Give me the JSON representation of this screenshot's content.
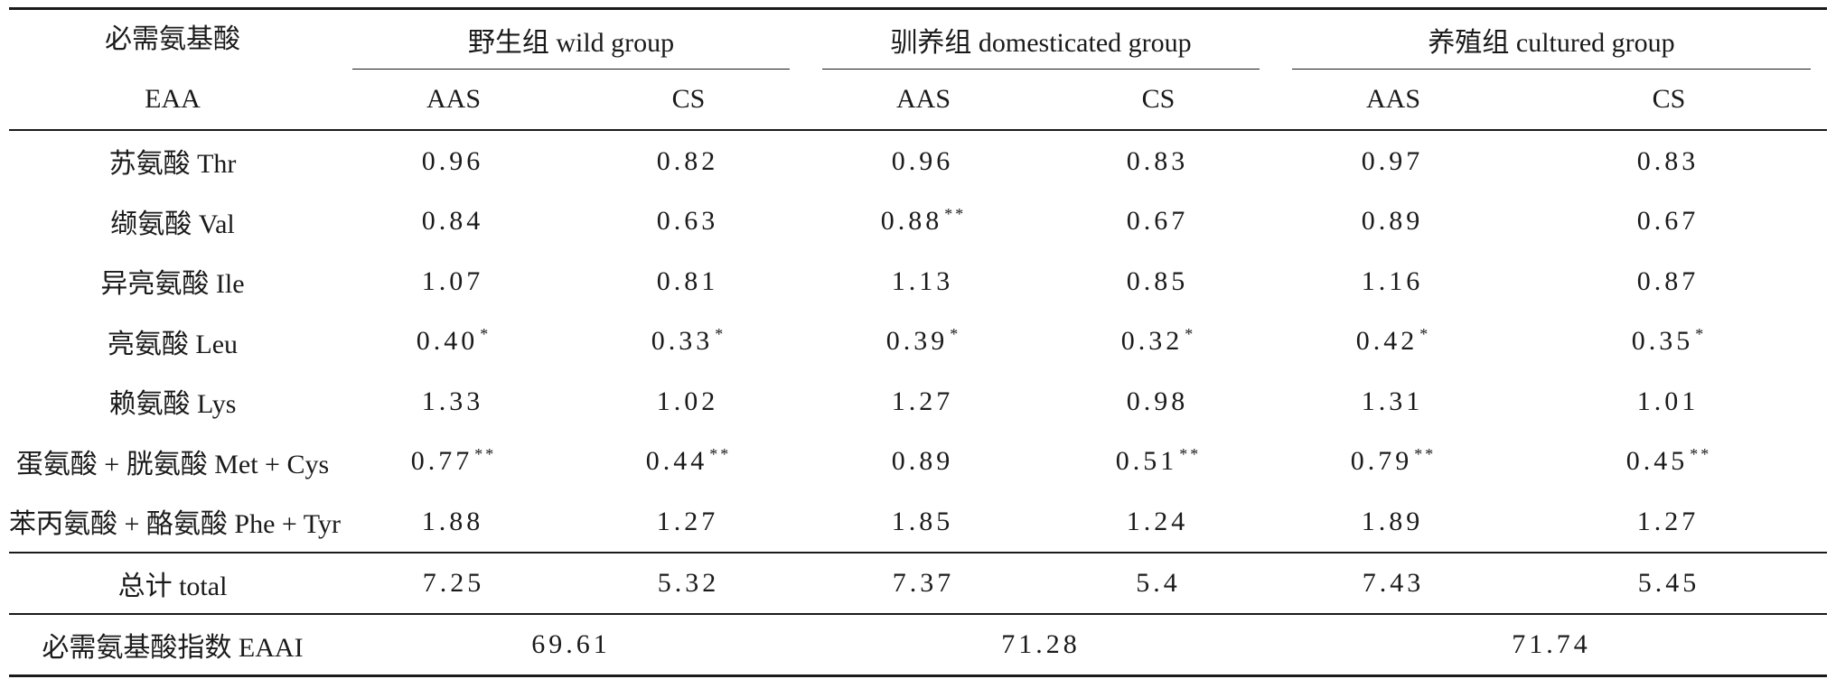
{
  "header": {
    "eaa_cn": "必需氨基酸",
    "eaa_en": "EAA",
    "groups": [
      {
        "label": "野生组 wild group"
      },
      {
        "label": "驯养组 domesticated group"
      },
      {
        "label": "养殖组 cultured group"
      }
    ],
    "sub": {
      "aas": "AAS",
      "cs": "CS"
    }
  },
  "rows": [
    {
      "name": "苏氨酸 Thr",
      "cells": [
        {
          "v": "0.96",
          "s": ""
        },
        {
          "v": "0.82",
          "s": ""
        },
        {
          "v": "0.96",
          "s": ""
        },
        {
          "v": "0.83",
          "s": ""
        },
        {
          "v": "0.97",
          "s": ""
        },
        {
          "v": "0.83",
          "s": ""
        }
      ]
    },
    {
      "name": "缬氨酸 Val",
      "cells": [
        {
          "v": "0.84",
          "s": ""
        },
        {
          "v": "0.63",
          "s": ""
        },
        {
          "v": "0.88",
          "s": "**"
        },
        {
          "v": "0.67",
          "s": ""
        },
        {
          "v": "0.89",
          "s": ""
        },
        {
          "v": "0.67",
          "s": ""
        }
      ]
    },
    {
      "name": "异亮氨酸 Ile",
      "cells": [
        {
          "v": "1.07",
          "s": ""
        },
        {
          "v": "0.81",
          "s": ""
        },
        {
          "v": "1.13",
          "s": ""
        },
        {
          "v": "0.85",
          "s": ""
        },
        {
          "v": "1.16",
          "s": ""
        },
        {
          "v": "0.87",
          "s": ""
        }
      ]
    },
    {
      "name": "亮氨酸 Leu",
      "cells": [
        {
          "v": "0.40",
          "s": "*"
        },
        {
          "v": "0.33",
          "s": "*"
        },
        {
          "v": "0.39",
          "s": "*"
        },
        {
          "v": "0.32",
          "s": "*"
        },
        {
          "v": "0.42",
          "s": "*"
        },
        {
          "v": "0.35",
          "s": "*"
        }
      ]
    },
    {
      "name": "赖氨酸 Lys",
      "cells": [
        {
          "v": "1.33",
          "s": ""
        },
        {
          "v": "1.02",
          "s": ""
        },
        {
          "v": "1.27",
          "s": ""
        },
        {
          "v": "0.98",
          "s": ""
        },
        {
          "v": "1.31",
          "s": ""
        },
        {
          "v": "1.01",
          "s": ""
        }
      ]
    },
    {
      "name": "蛋氨酸 + 胱氨酸 Met + Cys",
      "cells": [
        {
          "v": "0.77",
          "s": "**"
        },
        {
          "v": "0.44",
          "s": "**"
        },
        {
          "v": "0.89",
          "s": ""
        },
        {
          "v": "0.51",
          "s": "**"
        },
        {
          "v": "0.79",
          "s": "**"
        },
        {
          "v": "0.45",
          "s": "**"
        }
      ]
    },
    {
      "name": "苯丙氨酸 + 酪氨酸 Phe + Tyr",
      "cells": [
        {
          "v": "1.88",
          "s": ""
        },
        {
          "v": "1.27",
          "s": ""
        },
        {
          "v": "1.85",
          "s": ""
        },
        {
          "v": "1.24",
          "s": ""
        },
        {
          "v": "1.89",
          "s": ""
        },
        {
          "v": "1.27",
          "s": ""
        }
      ]
    }
  ],
  "total": {
    "name": "总计 total",
    "cells": [
      "7.25",
      "5.32",
      "7.37",
      "5.4",
      "7.43",
      "5.45"
    ]
  },
  "eaai": {
    "name": "必需氨基酸指数 EAAI",
    "values": [
      "69.61",
      "71.28",
      "71.74"
    ]
  }
}
